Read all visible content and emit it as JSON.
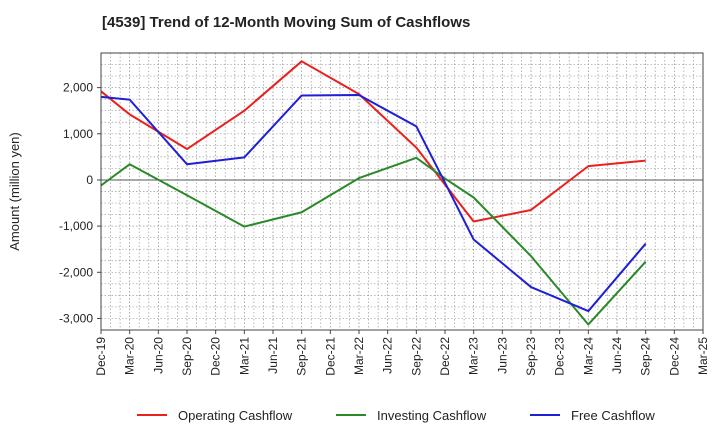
{
  "chart_data": {
    "type": "line",
    "title": "[4539]  Trend of 12-Month Moving Sum of Cashflows",
    "xlabel": "",
    "ylabel": "Amount (million yen)",
    "ylim": [
      -3250,
      2750
    ],
    "yticks": [
      2000,
      1000,
      0,
      -1000,
      -2000,
      -3000
    ],
    "ytick_labels": [
      "2,000",
      "1,000",
      "0",
      "-1,000",
      "-2,000",
      "-3,000"
    ],
    "categories": [
      "Dec-19",
      "Mar-20",
      "Jun-20",
      "Sep-20",
      "Dec-20",
      "Mar-21",
      "Jun-21",
      "Sep-21",
      "Dec-21",
      "Mar-22",
      "Jun-22",
      "Sep-22",
      "Dec-22",
      "Mar-23",
      "Jun-23",
      "Sep-23",
      "Dec-23",
      "Mar-24",
      "Jun-24",
      "Sep-24",
      "Dec-24",
      "Mar-25"
    ],
    "grid": true,
    "legend_position": "bottom",
    "series": [
      {
        "name": "Operating Cashflow",
        "color": "#e8211d",
        "x": [
          "Dec-19",
          "Mar-20",
          "Sep-20",
          "Mar-21",
          "Sep-21",
          "Mar-22",
          "Sep-22",
          "Dec-22",
          "Mar-23",
          "Sep-23",
          "Mar-24",
          "Sep-24"
        ],
        "values": [
          1920,
          1420,
          670,
          1500,
          2570,
          1860,
          700,
          -100,
          -900,
          -650,
          300,
          420
        ]
      },
      {
        "name": "Investing Cashflow",
        "color": "#2a8a2a",
        "x": [
          "Dec-19",
          "Mar-20",
          "Sep-20",
          "Mar-21",
          "Sep-21",
          "Mar-22",
          "Sep-22",
          "Dec-22",
          "Mar-23",
          "Sep-23",
          "Mar-24",
          "Sep-24"
        ],
        "values": [
          -120,
          340,
          -330,
          -1010,
          -700,
          40,
          480,
          30,
          -380,
          -1650,
          -3130,
          -1770
        ]
      },
      {
        "name": "Free Cashflow",
        "color": "#1f1fd6",
        "x": [
          "Dec-19",
          "Mar-20",
          "Sep-20",
          "Mar-21",
          "Sep-21",
          "Mar-22",
          "Sep-22",
          "Dec-22",
          "Mar-23",
          "Sep-23",
          "Mar-24",
          "Sep-24"
        ],
        "values": [
          1800,
          1740,
          340,
          490,
          1830,
          1840,
          1160,
          -60,
          -1290,
          -2320,
          -2840,
          -1380
        ]
      }
    ]
  }
}
